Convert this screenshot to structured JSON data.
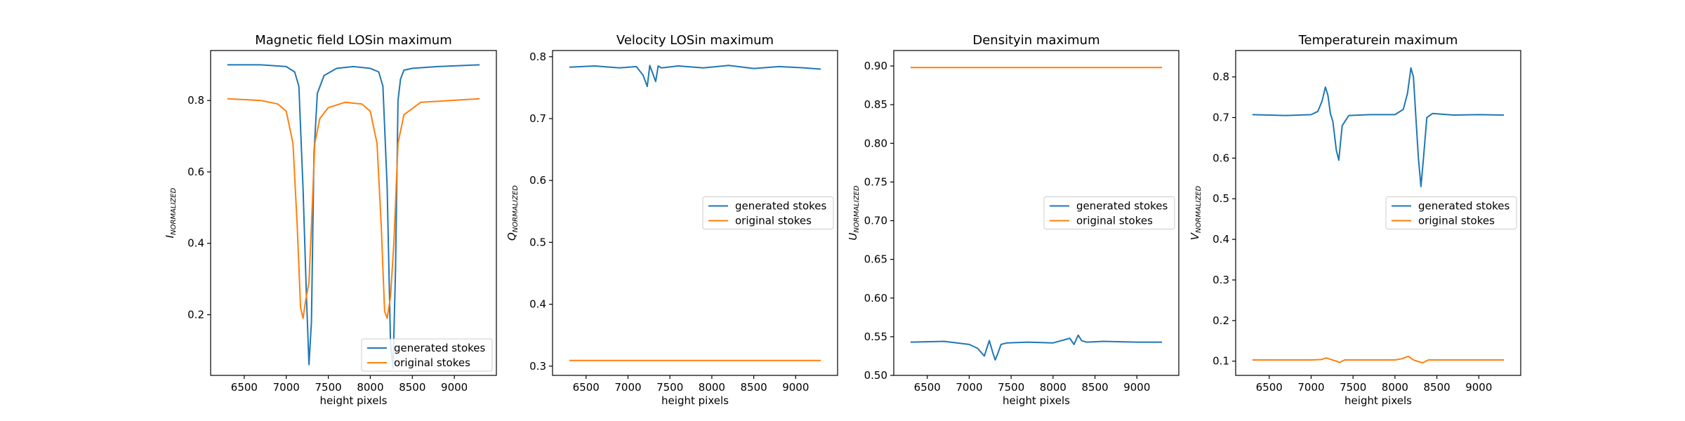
{
  "chart_data": [
    {
      "type": "line",
      "title": "Magnetic field LOSin maximum",
      "xlabel": "height pixels",
      "ylabel_main": "I",
      "ylabel_sub": "NORMALIZED",
      "xlim": [
        6100,
        9500
      ],
      "ylim": [
        0.03,
        0.94
      ],
      "xticks": [
        6500,
        7000,
        7500,
        8000,
        8500,
        9000
      ],
      "yticks": [
        0.2,
        0.4,
        0.6,
        0.8
      ],
      "ytick_labels": [
        "0.2",
        "0.4",
        "0.6",
        "0.8"
      ],
      "legend": {
        "placement": "lower-right",
        "entries": [
          "generated stokes",
          "original stokes"
        ]
      },
      "series": [
        {
          "name": "generated stokes",
          "color": "#1f77b4",
          "x": [
            6300,
            6700,
            7000,
            7100,
            7150,
            7200,
            7240,
            7270,
            7300,
            7330,
            7370,
            7450,
            7600,
            7800,
            8000,
            8100,
            8150,
            8200,
            8240,
            8270,
            8300,
            8330,
            8360,
            8400,
            8500,
            8800,
            9300
          ],
          "y": [
            0.9,
            0.9,
            0.895,
            0.88,
            0.84,
            0.55,
            0.25,
            0.06,
            0.18,
            0.65,
            0.82,
            0.87,
            0.89,
            0.895,
            0.89,
            0.88,
            0.84,
            0.56,
            0.12,
            0.05,
            0.33,
            0.8,
            0.86,
            0.885,
            0.89,
            0.895,
            0.9
          ]
        },
        {
          "name": "original stokes",
          "color": "#ff7f0e",
          "x": [
            6300,
            6700,
            6900,
            7000,
            7080,
            7130,
            7170,
            7200,
            7230,
            7270,
            7300,
            7340,
            7400,
            7500,
            7700,
            7900,
            8000,
            8080,
            8130,
            8170,
            8200,
            8240,
            8280,
            8330,
            8400,
            8600,
            9300
          ],
          "y": [
            0.805,
            0.8,
            0.79,
            0.77,
            0.68,
            0.45,
            0.22,
            0.19,
            0.24,
            0.29,
            0.45,
            0.68,
            0.75,
            0.78,
            0.795,
            0.79,
            0.77,
            0.68,
            0.45,
            0.21,
            0.19,
            0.25,
            0.4,
            0.68,
            0.76,
            0.795,
            0.805
          ]
        }
      ]
    },
    {
      "type": "line",
      "title": "Velocity LOSin maximum",
      "xlabel": "height pixels",
      "ylabel_main": "Q",
      "ylabel_sub": "NORMALIZED",
      "xlim": [
        6100,
        9500
      ],
      "ylim": [
        0.285,
        0.81
      ],
      "xticks": [
        6500,
        7000,
        7500,
        8000,
        8500,
        9000
      ],
      "yticks": [
        0.3,
        0.4,
        0.5,
        0.6,
        0.7,
        0.8
      ],
      "ytick_labels": [
        "0.3",
        "0.4",
        "0.5",
        "0.6",
        "0.7",
        "0.8"
      ],
      "legend": {
        "placement": "center-right",
        "entries": [
          "generated stokes",
          "original stokes"
        ]
      },
      "series": [
        {
          "name": "generated stokes",
          "color": "#1f77b4",
          "x": [
            6300,
            6600,
            6900,
            7100,
            7180,
            7230,
            7260,
            7290,
            7330,
            7360,
            7400,
            7600,
            7900,
            8200,
            8500,
            8800,
            9100,
            9300
          ],
          "y": [
            0.783,
            0.785,
            0.782,
            0.784,
            0.77,
            0.752,
            0.786,
            0.775,
            0.76,
            0.785,
            0.782,
            0.785,
            0.782,
            0.786,
            0.781,
            0.784,
            0.782,
            0.78
          ]
        },
        {
          "name": "original stokes",
          "color": "#ff7f0e",
          "x": [
            6300,
            9300
          ],
          "y": [
            0.309,
            0.309
          ]
        }
      ]
    },
    {
      "type": "line",
      "title": "Densityin maximum",
      "xlabel": "height pixels",
      "ylabel_main": "U",
      "ylabel_sub": "NORMALIZED",
      "xlim": [
        6100,
        9500
      ],
      "ylim": [
        0.5,
        0.92
      ],
      "xticks": [
        6500,
        7000,
        7500,
        8000,
        8500,
        9000
      ],
      "yticks": [
        0.5,
        0.55,
        0.6,
        0.65,
        0.7,
        0.75,
        0.8,
        0.85,
        0.9
      ],
      "ytick_labels": [
        "0.50",
        "0.55",
        "0.60",
        "0.65",
        "0.70",
        "0.75",
        "0.80",
        "0.85",
        "0.90"
      ],
      "legend": {
        "placement": "center-right",
        "entries": [
          "generated stokes",
          "original stokes"
        ]
      },
      "series": [
        {
          "name": "generated stokes",
          "color": "#1f77b4",
          "x": [
            6300,
            6700,
            7000,
            7100,
            7180,
            7240,
            7280,
            7310,
            7340,
            7380,
            7450,
            7700,
            8000,
            8200,
            8250,
            8300,
            8340,
            8400,
            8600,
            9000,
            9300
          ],
          "y": [
            0.543,
            0.544,
            0.54,
            0.535,
            0.525,
            0.545,
            0.53,
            0.52,
            0.528,
            0.54,
            0.542,
            0.543,
            0.542,
            0.548,
            0.54,
            0.552,
            0.545,
            0.543,
            0.544,
            0.543,
            0.543
          ]
        },
        {
          "name": "original stokes",
          "color": "#ff7f0e",
          "x": [
            6300,
            9300
          ],
          "y": [
            0.898,
            0.898
          ]
        }
      ]
    },
    {
      "type": "line",
      "title": "Temperaturein maximum",
      "xlabel": "height pixels",
      "ylabel_main": "V",
      "ylabel_sub": "NORMALIZED",
      "xlim": [
        6100,
        9500
      ],
      "ylim": [
        0.065,
        0.865
      ],
      "xticks": [
        6500,
        7000,
        7500,
        8000,
        8500,
        9000
      ],
      "yticks": [
        0.1,
        0.2,
        0.3,
        0.4,
        0.5,
        0.6,
        0.7,
        0.8
      ],
      "ytick_labels": [
        "0.1",
        "0.2",
        "0.3",
        "0.4",
        "0.5",
        "0.6",
        "0.7",
        "0.8"
      ],
      "legend": {
        "placement": "center-right",
        "entries": [
          "generated stokes",
          "original stokes"
        ]
      },
      "series": [
        {
          "name": "generated stokes",
          "color": "#1f77b4",
          "x": [
            6300,
            6700,
            7000,
            7080,
            7130,
            7170,
            7200,
            7230,
            7260,
            7300,
            7330,
            7370,
            7450,
            7700,
            8000,
            8100,
            8150,
            8190,
            8220,
            8250,
            8280,
            8310,
            8340,
            8380,
            8450,
            8700,
            9000,
            9300
          ],
          "y": [
            0.707,
            0.705,
            0.707,
            0.715,
            0.74,
            0.775,
            0.755,
            0.71,
            0.69,
            0.62,
            0.595,
            0.68,
            0.705,
            0.707,
            0.707,
            0.72,
            0.76,
            0.822,
            0.8,
            0.7,
            0.6,
            0.53,
            0.6,
            0.7,
            0.71,
            0.706,
            0.707,
            0.706
          ]
        },
        {
          "name": "original stokes",
          "color": "#ff7f0e",
          "x": [
            6300,
            7000,
            7120,
            7180,
            7240,
            7300,
            7340,
            7400,
            8000,
            8080,
            8160,
            8220,
            8280,
            8330,
            8400,
            9300
          ],
          "y": [
            0.103,
            0.103,
            0.104,
            0.108,
            0.104,
            0.1,
            0.097,
            0.103,
            0.103,
            0.106,
            0.112,
            0.103,
            0.099,
            0.096,
            0.103,
            0.103
          ]
        }
      ]
    }
  ]
}
